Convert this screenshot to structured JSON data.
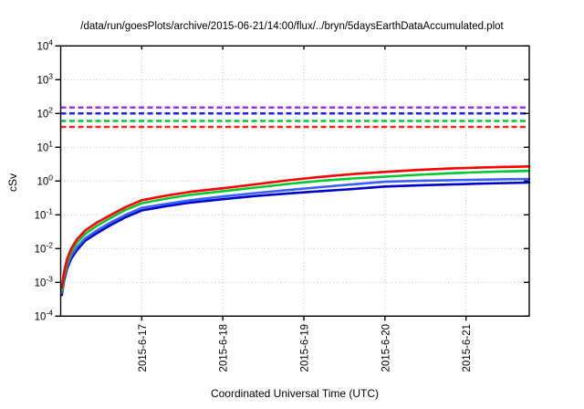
{
  "chart_data": {
    "type": "line",
    "title": "/data/run/goesPlots/archive/2015-06-21/14:00/flux/../bryn/5daysEarthDataAccumulated.plot",
    "xlabel": "Coordinated Universal Time (UTC)",
    "ylabel": "cSv",
    "y_scale": "log10",
    "ylim": [
      0.0001,
      10000
    ],
    "y_tick_exponents": [
      4,
      3,
      2,
      1,
      0,
      -1,
      -2,
      -3,
      -4
    ],
    "x_range_days": [
      0,
      5.78
    ],
    "x_ticks": [
      {
        "t": 1,
        "label": "2015-6-17"
      },
      {
        "t": 2,
        "label": "2015-6-18"
      },
      {
        "t": 3,
        "label": "2015-6-19"
      },
      {
        "t": 4,
        "label": "2015-6-20"
      },
      {
        "t": 5,
        "label": "2015-6-21"
      }
    ],
    "grid": "dotted",
    "grid_color": "#bdbdbd",
    "reference_lines": [
      {
        "name": "limit-purple",
        "value": 150,
        "color": "#9b30ff",
        "style": "dashed"
      },
      {
        "name": "limit-blue",
        "value": 100,
        "color": "#1f1fff",
        "style": "dashed"
      },
      {
        "name": "limit-green",
        "value": 60,
        "color": "#00c832",
        "style": "dashed"
      },
      {
        "name": "limit-red",
        "value": 40,
        "color": "#ff2020",
        "style": "dashed"
      }
    ],
    "t_days": [
      0.015,
      0.04,
      0.08,
      0.13,
      0.2,
      0.3,
      0.45,
      0.62,
      0.8,
      1.0,
      1.3,
      1.6,
      2.0,
      2.4,
      2.8,
      3.2,
      3.6,
      4.0,
      4.4,
      4.8,
      5.2,
      5.5,
      5.78
    ],
    "series": [
      {
        "name": "accumulated-blue",
        "color": "#0000cd",
        "values": [
          0.00042,
          0.0011,
          0.0026,
          0.005,
          0.009,
          0.017,
          0.029,
          0.05,
          0.085,
          0.135,
          0.18,
          0.23,
          0.29,
          0.36,
          0.43,
          0.5,
          0.58,
          0.69,
          0.74,
          0.79,
          0.84,
          0.87,
          0.9
        ]
      },
      {
        "name": "accumulated-lightblue",
        "color": "#3a5fff",
        "values": [
          0.00048,
          0.0013,
          0.003,
          0.006,
          0.011,
          0.02,
          0.035,
          0.06,
          0.1,
          0.16,
          0.21,
          0.27,
          0.35,
          0.44,
          0.54,
          0.66,
          0.8,
          0.95,
          1.01,
          1.06,
          1.1,
          1.13,
          1.15
        ]
      },
      {
        "name": "accumulated-green",
        "color": "#00c832",
        "values": [
          0.00058,
          0.0016,
          0.004,
          0.008,
          0.015,
          0.027,
          0.048,
          0.082,
          0.14,
          0.22,
          0.3,
          0.39,
          0.5,
          0.64,
          0.82,
          1.01,
          1.19,
          1.35,
          1.53,
          1.7,
          1.84,
          1.93,
          2.0
        ]
      },
      {
        "name": "accumulated-red",
        "color": "#ff0000",
        "values": [
          0.0007,
          0.002,
          0.005,
          0.01,
          0.019,
          0.034,
          0.06,
          0.1,
          0.17,
          0.27,
          0.37,
          0.48,
          0.61,
          0.8,
          1.05,
          1.32,
          1.6,
          1.86,
          2.12,
          2.35,
          2.52,
          2.62,
          2.7
        ]
      }
    ]
  }
}
